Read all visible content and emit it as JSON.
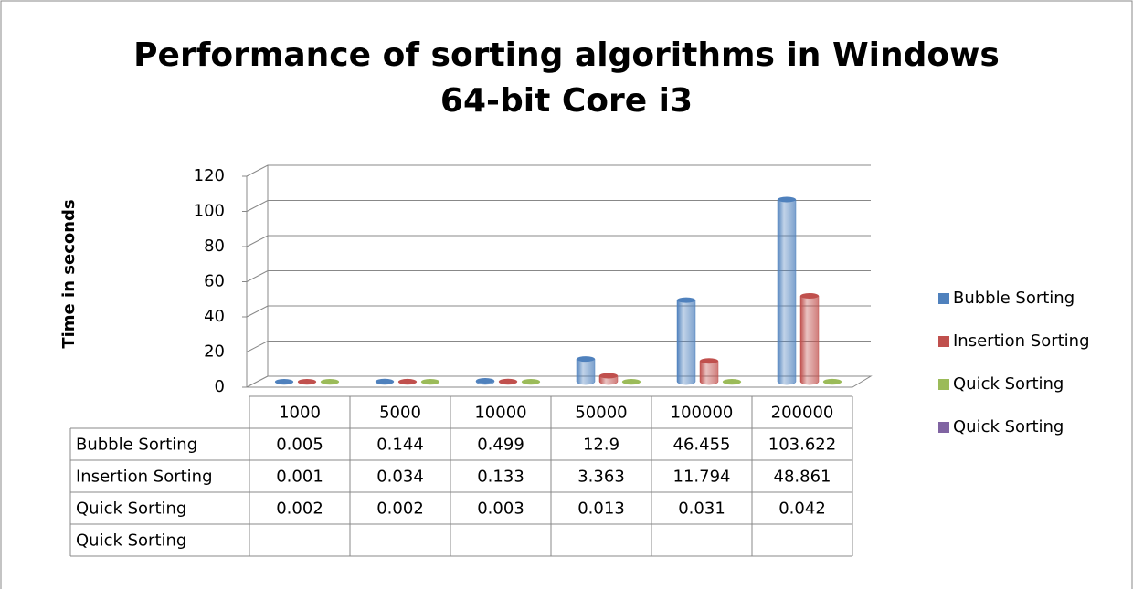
{
  "chart_data": {
    "type": "bar3d",
    "title": [
      "Performance of sorting algorithms in Windows",
      "64-bit Core i3"
    ],
    "y_label": "Time in seconds",
    "categories": [
      "1000",
      "5000",
      "10000",
      "50000",
      "100000",
      "200000"
    ],
    "series": [
      {
        "name": "Bubble Sorting",
        "color": "#4f81bd",
        "values": [
          0.005,
          0.144,
          0.499,
          12.9,
          46.455,
          103.622
        ]
      },
      {
        "name": "Insertion Sorting",
        "color": "#c0504d",
        "values": [
          0.001,
          0.034,
          0.133,
          3.363,
          11.794,
          48.861
        ]
      },
      {
        "name": "Quick Sorting",
        "color": "#9bbb59",
        "values": [
          0.002,
          0.002,
          0.003,
          0.013,
          0.031,
          0.042
        ]
      },
      {
        "name": "Quick Sorting",
        "color": "#8064a2",
        "values": [
          null,
          null,
          null,
          null,
          null,
          null
        ]
      }
    ],
    "ylim": [
      0,
      120
    ],
    "yticks": [
      0,
      20,
      40,
      60,
      80,
      100,
      120
    ],
    "grid": true,
    "legend": "right"
  }
}
